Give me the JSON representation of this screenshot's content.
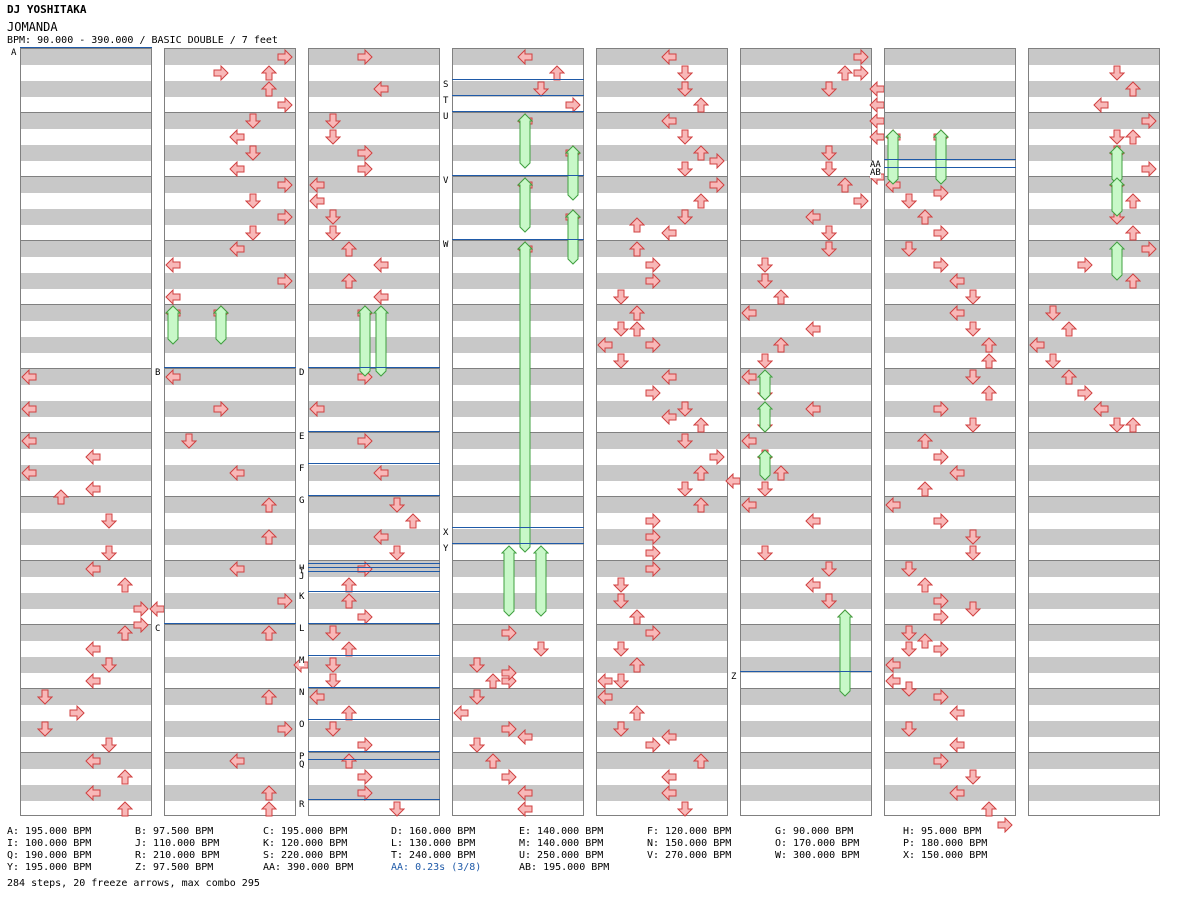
{
  "header": {
    "artist": "DJ YOSHITAKA",
    "title": "JOMANDA",
    "bpm_line": "BPM: 90.000 - 390.000 / BASIC DOUBLE / 7 feet"
  },
  "colors": {
    "accent": "#1f5aa8",
    "arrow_red": "#f8b8b8",
    "arrow_blue": "#a8d4f8",
    "freeze": "#c8f8c8"
  },
  "bpm_legend": [
    [
      "A: 195.000 BPM",
      "B: 97.500 BPM",
      "C: 195.000 BPM",
      "D: 160.000 BPM",
      "E: 140.000 BPM",
      "F: 120.000 BPM",
      "G: 90.000 BPM",
      "H: 95.000 BPM"
    ],
    [
      "I: 100.000 BPM",
      "J: 110.000 BPM",
      "K: 120.000 BPM",
      "L: 130.000 BPM",
      "M: 140.000 BPM",
      "N: 150.000 BPM",
      "O: 170.000 BPM",
      "P: 180.000 BPM"
    ],
    [
      "Q: 190.000 BPM",
      "R: 210.000 BPM",
      "S: 220.000 BPM",
      "T: 240.000 BPM",
      "U: 250.000 BPM",
      "V: 270.000 BPM",
      "W: 300.000 BPM",
      "X: 150.000 BPM"
    ],
    [
      "Y: 195.000 BPM",
      "Z: 97.500 BPM",
      "AA: 390.000 BPM",
      "AA: 0.23s (3/8)",
      "AB: 195.000 BPM"
    ]
  ],
  "stop_note": "AA: 0.23s (3/8)",
  "stats": "284 steps, 20 freeze arrows, max combo 295",
  "chart": {
    "columns": 8,
    "measures_per_column": 12,
    "bpm_markers": [
      {
        "label": "A",
        "col": 0,
        "beat": 0
      },
      {
        "label": "B",
        "col": 1,
        "beat": 20
      },
      {
        "label": "C",
        "col": 1,
        "beat": 36
      },
      {
        "label": "D",
        "col": 2,
        "beat": 20
      },
      {
        "label": "E",
        "col": 2,
        "beat": 24
      },
      {
        "label": "F",
        "col": 2,
        "beat": 26
      },
      {
        "label": "G",
        "col": 2,
        "beat": 28
      },
      {
        "label": "H",
        "col": 2,
        "beat": 32.25
      },
      {
        "label": "I",
        "col": 2,
        "beat": 32.5
      },
      {
        "label": "J",
        "col": 2,
        "beat": 32.75
      },
      {
        "label": "K",
        "col": 2,
        "beat": 34
      },
      {
        "label": "L",
        "col": 2,
        "beat": 36
      },
      {
        "label": "M",
        "col": 2,
        "beat": 38
      },
      {
        "label": "N",
        "col": 2,
        "beat": 40
      },
      {
        "label": "O",
        "col": 2,
        "beat": 42
      },
      {
        "label": "P",
        "col": 2,
        "beat": 44
      },
      {
        "label": "Q",
        "col": 2,
        "beat": 44.5
      },
      {
        "label": "R",
        "col": 2,
        "beat": 47
      },
      {
        "label": "S",
        "col": 3,
        "beat": 2
      },
      {
        "label": "T",
        "col": 3,
        "beat": 3
      },
      {
        "label": "U",
        "col": 3,
        "beat": 4
      },
      {
        "label": "V",
        "col": 3,
        "beat": 8
      },
      {
        "label": "W",
        "col": 3,
        "beat": 12
      },
      {
        "label": "X",
        "col": 3,
        "beat": 30
      },
      {
        "label": "Y",
        "col": 3,
        "beat": 31
      },
      {
        "label": "Z",
        "col": 5,
        "beat": 39
      },
      {
        "label": "AA",
        "col": 6,
        "beat": 7
      },
      {
        "label": "AB",
        "col": 6,
        "beat": 7.5
      }
    ],
    "arrows": [
      [
        0,
        20,
        0
      ],
      [
        0,
        22,
        0
      ],
      [
        0,
        24,
        0
      ],
      [
        0,
        26,
        0
      ],
      [
        0,
        27.5,
        2
      ],
      [
        0,
        25,
        4
      ],
      [
        0,
        27,
        4
      ],
      [
        0,
        29,
        5
      ],
      [
        0,
        31,
        5
      ],
      [
        0,
        32,
        4
      ],
      [
        0,
        33,
        6
      ],
      [
        0,
        34.5,
        7
      ],
      [
        0,
        35.5,
        7
      ],
      [
        0,
        34.5,
        8
      ],
      [
        0,
        36,
        6
      ],
      [
        0,
        37,
        4
      ],
      [
        0,
        38,
        5
      ],
      [
        0,
        39,
        4
      ],
      [
        0,
        40,
        1
      ],
      [
        0,
        41,
        3
      ],
      [
        0,
        42,
        1
      ],
      [
        0,
        43,
        5
      ],
      [
        0,
        44,
        4
      ],
      [
        0,
        45,
        6
      ],
      [
        0,
        46,
        4
      ],
      [
        0,
        47,
        6
      ],
      [
        1,
        0,
        7
      ],
      [
        1,
        1,
        3
      ],
      [
        1,
        1,
        6
      ],
      [
        1,
        2,
        6
      ],
      [
        1,
        3,
        7
      ],
      [
        1,
        4,
        5
      ],
      [
        1,
        5,
        4
      ],
      [
        1,
        6,
        5
      ],
      [
        1,
        7,
        4
      ],
      [
        1,
        8,
        7
      ],
      [
        1,
        9,
        5
      ],
      [
        1,
        10,
        7
      ],
      [
        1,
        11,
        5
      ],
      [
        1,
        12,
        4
      ],
      [
        1,
        13,
        0
      ],
      [
        1,
        14,
        7
      ],
      [
        1,
        15,
        0
      ],
      [
        1,
        16,
        0
      ],
      [
        1,
        16,
        3
      ],
      [
        1,
        20,
        0
      ],
      [
        1,
        22,
        3
      ],
      [
        1,
        24,
        1
      ],
      [
        1,
        26,
        4
      ],
      [
        1,
        28,
        6
      ],
      [
        1,
        30,
        6
      ],
      [
        1,
        32,
        4
      ],
      [
        1,
        34,
        7
      ],
      [
        1,
        36,
        6
      ],
      [
        1,
        38,
        8
      ],
      [
        1,
        40,
        6
      ],
      [
        1,
        42,
        7
      ],
      [
        1,
        44,
        4
      ],
      [
        1,
        46,
        6
      ],
      [
        1,
        47,
        6
      ],
      [
        2,
        0,
        3
      ],
      [
        2,
        2,
        4
      ],
      [
        2,
        4,
        1
      ],
      [
        2,
        5,
        1
      ],
      [
        2,
        6,
        3
      ],
      [
        2,
        7,
        3
      ],
      [
        2,
        8,
        0
      ],
      [
        2,
        9,
        0
      ],
      [
        2,
        10,
        1
      ],
      [
        2,
        11,
        1
      ],
      [
        2,
        12,
        2
      ],
      [
        2,
        13,
        4
      ],
      [
        2,
        14,
        2
      ],
      [
        2,
        15,
        4
      ],
      [
        2,
        16,
        3
      ],
      [
        2,
        20,
        3
      ],
      [
        2,
        22,
        0
      ],
      [
        2,
        24,
        3
      ],
      [
        2,
        26,
        4
      ],
      [
        2,
        28,
        5
      ],
      [
        2,
        29,
        6
      ],
      [
        2,
        30,
        4
      ],
      [
        2,
        31,
        5
      ],
      [
        2,
        32,
        3
      ],
      [
        2,
        33,
        2
      ],
      [
        2,
        34,
        2
      ],
      [
        2,
        35,
        3
      ],
      [
        2,
        36,
        1
      ],
      [
        2,
        37,
        2
      ],
      [
        2,
        38,
        1
      ],
      [
        2,
        39,
        1
      ],
      [
        2,
        40,
        0
      ],
      [
        2,
        41,
        2
      ],
      [
        2,
        42,
        1
      ],
      [
        2,
        43,
        3
      ],
      [
        2,
        44,
        2
      ],
      [
        2,
        45,
        3
      ],
      [
        2,
        46,
        3
      ],
      [
        2,
        47,
        5
      ],
      [
        3,
        0,
        4
      ],
      [
        3,
        1,
        6
      ],
      [
        3,
        2,
        5
      ],
      [
        3,
        3,
        7
      ],
      [
        3,
        4,
        4
      ],
      [
        3,
        6,
        7
      ],
      [
        3,
        8,
        4
      ],
      [
        3,
        10,
        7
      ],
      [
        3,
        12,
        4
      ],
      [
        3,
        36,
        3
      ],
      [
        3,
        37,
        5
      ],
      [
        3,
        38,
        1
      ],
      [
        3,
        39,
        2
      ],
      [
        3,
        39,
        3
      ],
      [
        3,
        38.5,
        3
      ],
      [
        3,
        40,
        1
      ],
      [
        3,
        41,
        0
      ],
      [
        3,
        42,
        3
      ],
      [
        3,
        42.5,
        4
      ],
      [
        3,
        43,
        1
      ],
      [
        3,
        44,
        2
      ],
      [
        3,
        45,
        3
      ],
      [
        3,
        46,
        4
      ],
      [
        3,
        47,
        4
      ],
      [
        4,
        0,
        4
      ],
      [
        4,
        1,
        5
      ],
      [
        4,
        2,
        5
      ],
      [
        4,
        3,
        6
      ],
      [
        4,
        4,
        4
      ],
      [
        4,
        5,
        5
      ],
      [
        4,
        6,
        6
      ],
      [
        4,
        6.5,
        7
      ],
      [
        4,
        7,
        5
      ],
      [
        4,
        8,
        7
      ],
      [
        4,
        9,
        6
      ],
      [
        4,
        10,
        5
      ],
      [
        4,
        11,
        4
      ],
      [
        4,
        10.5,
        2
      ],
      [
        4,
        12,
        2
      ],
      [
        4,
        13,
        3
      ],
      [
        4,
        14,
        3
      ],
      [
        4,
        15,
        1
      ],
      [
        4,
        16,
        2
      ],
      [
        4,
        17,
        1
      ],
      [
        4,
        17,
        2
      ],
      [
        4,
        18,
        0
      ],
      [
        4,
        18,
        3
      ],
      [
        4,
        19,
        1
      ],
      [
        4,
        20,
        4
      ],
      [
        4,
        21,
        3
      ],
      [
        4,
        22,
        5
      ],
      [
        4,
        22.5,
        4
      ],
      [
        4,
        23,
        6
      ],
      [
        4,
        24,
        5
      ],
      [
        4,
        25,
        7
      ],
      [
        4,
        26,
        6
      ],
      [
        4,
        26.5,
        8
      ],
      [
        4,
        27,
        5
      ],
      [
        4,
        28,
        6
      ],
      [
        4,
        29,
        3
      ],
      [
        4,
        30,
        3
      ],
      [
        4,
        31,
        3
      ],
      [
        4,
        32,
        3
      ],
      [
        4,
        33,
        1
      ],
      [
        4,
        34,
        1
      ],
      [
        4,
        35,
        2
      ],
      [
        4,
        36,
        3
      ],
      [
        4,
        37,
        1
      ],
      [
        4,
        38,
        2
      ],
      [
        4,
        39,
        0
      ],
      [
        4,
        39,
        1
      ],
      [
        4,
        40,
        0
      ],
      [
        4,
        41,
        2
      ],
      [
        4,
        42,
        1
      ],
      [
        4,
        43,
        3
      ],
      [
        4,
        42.5,
        4
      ],
      [
        4,
        44,
        6
      ],
      [
        4,
        45,
        4
      ],
      [
        4,
        46,
        4
      ],
      [
        4,
        47,
        5
      ],
      [
        5,
        0,
        7
      ],
      [
        5,
        1,
        6
      ],
      [
        5,
        1,
        7
      ],
      [
        5,
        2,
        5
      ],
      [
        5,
        2,
        8
      ],
      [
        5,
        3,
        8
      ],
      [
        5,
        4,
        8
      ],
      [
        5,
        5,
        8
      ],
      [
        5,
        6,
        5
      ],
      [
        5,
        7,
        5
      ],
      [
        5,
        7.5,
        8
      ],
      [
        5,
        8,
        6
      ],
      [
        5,
        9,
        7
      ],
      [
        5,
        10,
        4
      ],
      [
        5,
        11,
        5
      ],
      [
        5,
        12,
        5
      ],
      [
        5,
        13,
        1
      ],
      [
        5,
        14,
        1
      ],
      [
        5,
        15,
        2
      ],
      [
        5,
        16,
        0
      ],
      [
        5,
        17,
        4
      ],
      [
        5,
        18,
        2
      ],
      [
        5,
        19,
        1
      ],
      [
        5,
        20,
        0
      ],
      [
        5,
        21,
        1
      ],
      [
        5,
        22,
        4
      ],
      [
        5,
        23,
        1
      ],
      [
        5,
        24,
        0
      ],
      [
        5,
        25,
        1
      ],
      [
        5,
        26,
        2
      ],
      [
        5,
        27,
        1
      ],
      [
        5,
        28,
        0
      ],
      [
        5,
        29,
        4
      ],
      [
        5,
        31,
        1
      ],
      [
        5,
        32,
        5
      ],
      [
        5,
        33,
        4
      ],
      [
        5,
        34,
        5
      ],
      [
        5,
        35,
        6
      ],
      [
        6,
        5,
        0
      ],
      [
        6,
        5,
        3
      ],
      [
        6,
        8,
        0
      ],
      [
        6,
        8.5,
        3
      ],
      [
        6,
        9,
        1
      ],
      [
        6,
        10,
        2
      ],
      [
        6,
        11,
        3
      ],
      [
        6,
        12,
        1
      ],
      [
        6,
        13,
        3
      ],
      [
        6,
        14,
        4
      ],
      [
        6,
        15,
        5
      ],
      [
        6,
        16,
        4
      ],
      [
        6,
        17,
        5
      ],
      [
        6,
        18,
        6
      ],
      [
        6,
        19,
        6
      ],
      [
        6,
        20,
        5
      ],
      [
        6,
        21,
        6
      ],
      [
        6,
        22,
        3
      ],
      [
        6,
        23,
        5
      ],
      [
        6,
        24,
        2
      ],
      [
        6,
        25,
        3
      ],
      [
        6,
        26,
        4
      ],
      [
        6,
        27,
        2
      ],
      [
        6,
        28,
        0
      ],
      [
        6,
        29,
        3
      ],
      [
        6,
        30,
        5
      ],
      [
        6,
        31,
        5
      ],
      [
        6,
        32,
        1
      ],
      [
        6,
        33,
        2
      ],
      [
        6,
        34,
        3
      ],
      [
        6,
        35,
        3
      ],
      [
        6,
        34.5,
        5
      ],
      [
        6,
        36,
        1
      ],
      [
        6,
        36.5,
        2
      ],
      [
        6,
        37,
        1
      ],
      [
        6,
        37,
        3
      ],
      [
        6,
        38,
        0
      ],
      [
        6,
        39,
        0
      ],
      [
        6,
        39.5,
        1
      ],
      [
        6,
        40,
        3
      ],
      [
        6,
        41,
        4
      ],
      [
        6,
        42,
        1
      ],
      [
        6,
        43,
        4
      ],
      [
        6,
        44,
        3
      ],
      [
        6,
        45,
        5
      ],
      [
        6,
        46,
        4
      ],
      [
        6,
        47,
        6
      ],
      [
        6,
        48,
        7
      ],
      [
        7,
        1,
        5
      ],
      [
        7,
        2,
        6
      ],
      [
        7,
        3,
        4
      ],
      [
        7,
        4,
        7
      ],
      [
        7,
        5,
        5
      ],
      [
        7,
        5,
        6
      ],
      [
        7,
        6,
        5
      ],
      [
        7,
        7,
        7
      ],
      [
        7,
        8,
        5
      ],
      [
        7,
        9,
        6
      ],
      [
        7,
        10,
        5
      ],
      [
        7,
        11,
        6
      ],
      [
        7,
        12,
        7
      ],
      [
        7,
        13,
        3
      ],
      [
        7,
        14,
        6
      ],
      [
        7,
        16,
        1
      ],
      [
        7,
        17,
        2
      ],
      [
        7,
        18,
        0
      ],
      [
        7,
        19,
        1
      ],
      [
        7,
        20,
        2
      ],
      [
        7,
        21,
        3
      ],
      [
        7,
        22,
        4
      ],
      [
        7,
        23,
        5
      ],
      [
        7,
        23,
        6
      ]
    ],
    "arrow_notes": "tuple = [column, beat(0-48), lane(0-8 half-lanes)]",
    "freezes": [
      [
        1,
        16,
        18,
        0
      ],
      [
        1,
        16,
        18,
        3
      ],
      [
        2,
        16,
        20,
        3
      ],
      [
        2,
        16,
        20,
        4
      ],
      [
        3,
        4,
        7,
        4
      ],
      [
        3,
        6,
        9,
        7
      ],
      [
        3,
        8,
        11,
        4
      ],
      [
        3,
        10,
        13,
        7
      ],
      [
        3,
        12,
        31,
        4
      ],
      [
        3,
        31,
        35,
        3
      ],
      [
        3,
        31,
        35,
        5
      ],
      [
        5,
        20,
        21.5,
        1
      ],
      [
        5,
        22,
        23.5,
        1
      ],
      [
        5,
        25,
        26.5,
        1
      ],
      [
        5,
        35,
        40,
        6
      ],
      [
        6,
        5,
        8,
        0
      ],
      [
        6,
        5,
        8,
        3
      ],
      [
        7,
        6,
        8,
        5
      ],
      [
        7,
        8,
        10,
        5
      ],
      [
        7,
        12,
        14,
        5
      ]
    ]
  }
}
